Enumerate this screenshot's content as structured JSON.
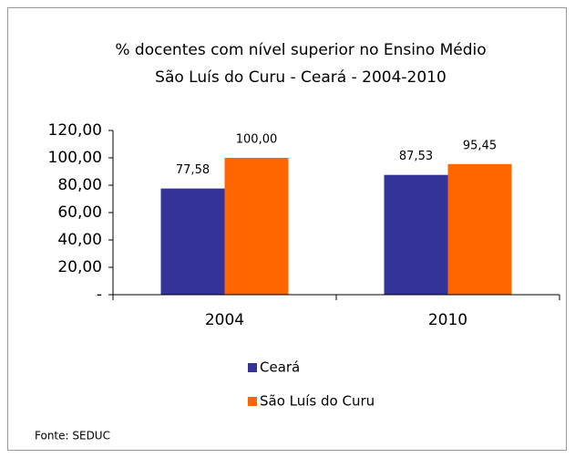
{
  "chart_data": {
    "type": "bar",
    "title": "% docentes com nível  superior no Ensino Médio",
    "subtitle": "São Luís do Curu -  Ceará - 2004-2010",
    "categories": [
      "2004",
      "2010"
    ],
    "series": [
      {
        "name": "Ceará",
        "color": "#333399",
        "values": [
          77.58,
          87.53
        ],
        "value_labels": [
          "77,58",
          "87,53"
        ]
      },
      {
        "name": "São Luís do Curu",
        "color": "#ff6600",
        "values": [
          100,
          95.45
        ],
        "value_labels": [
          "100,00",
          "95,45"
        ]
      }
    ],
    "ylim": [
      0,
      120
    ],
    "yticks": [
      {
        "value": 0,
        "label": "-"
      },
      {
        "value": 20,
        "label": "20,00"
      },
      {
        "value": 40,
        "label": "40,00"
      },
      {
        "value": 60,
        "label": "60,00"
      },
      {
        "value": 80,
        "label": "80,00"
      },
      {
        "value": 100,
        "label": "100,00"
      },
      {
        "value": 120,
        "label": "120,00"
      }
    ],
    "grid": false,
    "legend": "bottom",
    "source": "Fonte: SEDUC"
  }
}
